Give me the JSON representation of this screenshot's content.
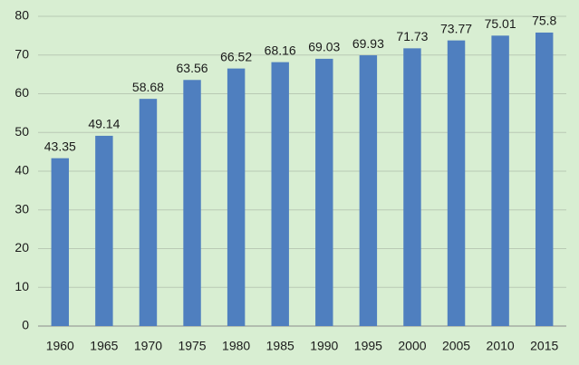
{
  "chart_data": {
    "type": "bar",
    "categories": [
      "1960",
      "1965",
      "1970",
      "1975",
      "1980",
      "1985",
      "1990",
      "1995",
      "2000",
      "2005",
      "2010",
      "2015"
    ],
    "values": [
      43.35,
      49.14,
      58.68,
      63.56,
      66.52,
      68.16,
      69.03,
      69.93,
      71.73,
      73.77,
      75.01,
      75.8
    ],
    "color": "#4f7fbf",
    "ylim": [
      0,
      80
    ],
    "yticks": [
      0,
      10,
      20,
      30,
      40,
      50,
      60,
      70,
      80
    ],
    "grid": true
  }
}
